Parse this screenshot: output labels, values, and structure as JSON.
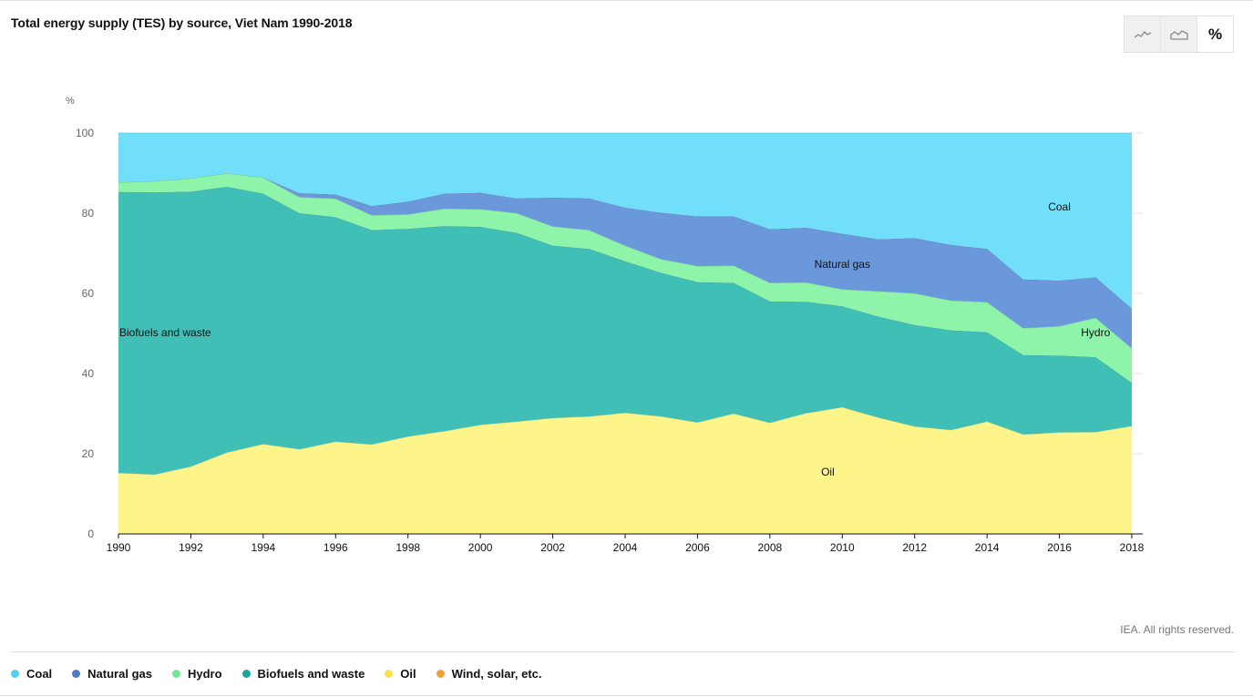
{
  "title": "Total energy supply (TES) by source, Viet Nam 1990-2018",
  "toggles": [
    {
      "name": "line-chart-icon",
      "label": ""
    },
    {
      "name": "area-chart-icon",
      "label": ""
    },
    {
      "name": "percent-toggle",
      "label": "%"
    }
  ],
  "credit": "IEA. All rights reserved.",
  "legend": [
    {
      "label": "Coal",
      "color": "#4fd2f1"
    },
    {
      "label": "Natural gas",
      "color": "#4f79c8"
    },
    {
      "label": "Hydro",
      "color": "#6ee796"
    },
    {
      "label": "Biofuels and waste",
      "color": "#1aa79a"
    },
    {
      "label": "Oil",
      "color": "#f5e44f"
    },
    {
      "label": "Wind, solar, etc.",
      "color": "#f2a03c"
    }
  ],
  "chart_data": {
    "type": "area",
    "stacked": true,
    "normalized_percent": true,
    "ylabel": "%",
    "ylim": [
      0,
      100
    ],
    "yticks": [
      0,
      20,
      40,
      60,
      80,
      100
    ],
    "xticks": [
      1990,
      1992,
      1994,
      1996,
      1998,
      2000,
      2002,
      2004,
      2006,
      2008,
      2010,
      2012,
      2014,
      2016,
      2018
    ],
    "x": [
      1990,
      1991,
      1992,
      1993,
      1994,
      1995,
      1996,
      1997,
      1998,
      1999,
      2000,
      2001,
      2002,
      2003,
      2004,
      2005,
      2006,
      2007,
      2008,
      2009,
      2010,
      2011,
      2012,
      2013,
      2014,
      2015,
      2016,
      2017,
      2018
    ],
    "series": [
      {
        "name": "Oil",
        "color": "#fef58a",
        "values": [
          15.2,
          14.8,
          16.8,
          20.3,
          22.4,
          21.1,
          23.0,
          22.3,
          24.3,
          25.6,
          27.2,
          28.0,
          28.9,
          29.3,
          30.2,
          29.3,
          27.8,
          30.0,
          27.7,
          30.1,
          31.6,
          29.0,
          26.8,
          25.9,
          28.0,
          24.8,
          25.3,
          25.4,
          26.9
        ]
      },
      {
        "name": "Biofuels and waste",
        "color": "#40bfb7",
        "values": [
          70.1,
          70.4,
          68.6,
          66.3,
          62.5,
          58.9,
          56.0,
          53.5,
          51.8,
          51.2,
          49.4,
          47.1,
          43.0,
          41.8,
          37.8,
          35.8,
          35.0,
          32.6,
          30.3,
          27.8,
          25.2,
          25.2,
          25.3,
          24.9,
          22.3,
          19.8,
          19.2,
          18.7,
          10.8
        ]
      },
      {
        "name": "Hydro",
        "color": "#8df4a9",
        "values": [
          2.4,
          2.8,
          3.3,
          3.4,
          4.0,
          4.0,
          4.6,
          3.7,
          3.6,
          4.3,
          4.4,
          4.9,
          4.8,
          4.7,
          3.9,
          3.4,
          4.0,
          4.3,
          4.6,
          4.8,
          4.2,
          6.3,
          7.9,
          7.4,
          7.5,
          6.7,
          7.3,
          9.8,
          8.6
        ]
      },
      {
        "name": "Natural gas",
        "color": "#6b98db",
        "values": [
          0.0,
          0.0,
          0.0,
          0.0,
          0.0,
          1.0,
          1.1,
          2.3,
          3.2,
          3.8,
          4.1,
          3.7,
          7.2,
          7.9,
          9.5,
          11.6,
          12.4,
          12.3,
          13.4,
          13.7,
          13.9,
          13.0,
          13.8,
          13.9,
          13.3,
          12.2,
          11.4,
          10.1,
          9.9
        ]
      },
      {
        "name": "Coal",
        "color": "#72dffa",
        "values": [
          12.3,
          12.0,
          11.3,
          10.0,
          11.1,
          15.0,
          15.3,
          18.2,
          17.1,
          15.1,
          14.9,
          16.3,
          16.1,
          16.3,
          18.6,
          19.9,
          20.8,
          20.8,
          24.0,
          23.6,
          25.1,
          26.5,
          26.2,
          27.9,
          28.9,
          36.5,
          36.8,
          36.0,
          43.8
        ]
      }
    ],
    "annotations": [
      {
        "text": "Coal",
        "series": "Coal"
      },
      {
        "text": "Natural gas",
        "series": "Natural gas"
      },
      {
        "text": "Hydro",
        "series": "Hydro"
      },
      {
        "text": "Biofuels and waste",
        "series": "Biofuels and waste"
      },
      {
        "text": "Oil",
        "series": "Oil"
      }
    ]
  }
}
